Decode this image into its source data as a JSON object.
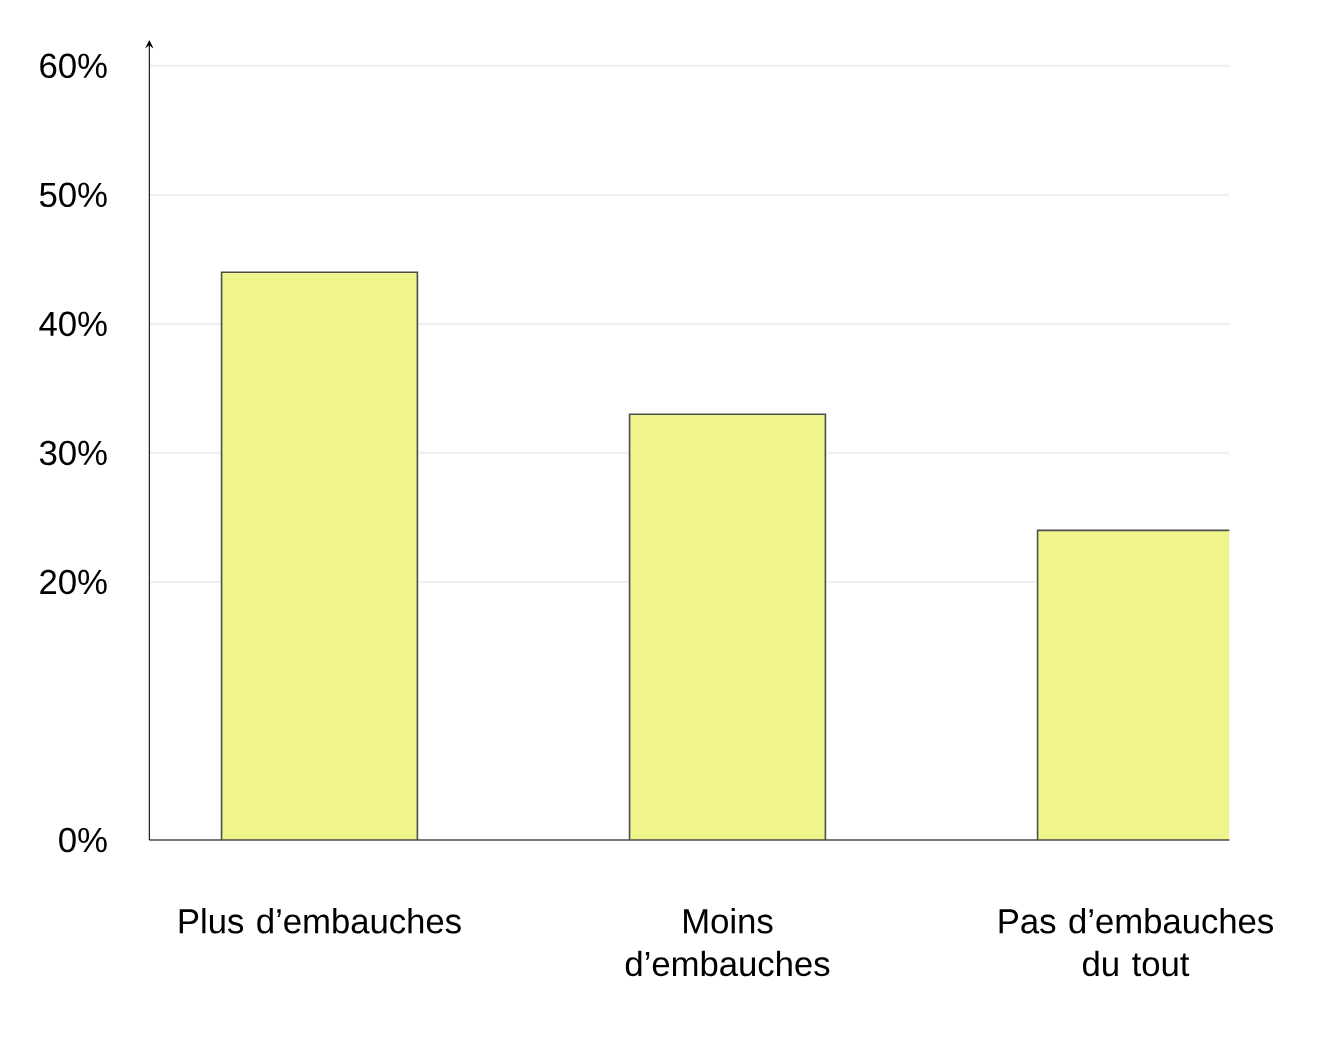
{
  "chart_data": {
    "type": "bar",
    "categories": [
      "Plus d’embauches",
      "Moins d’embauches",
      "Pas d’embauches du tout"
    ],
    "values": [
      44,
      33,
      24
    ],
    "color": "#f0f48c",
    "ylim": [
      0,
      62
    ],
    "yticks": [
      {
        "value": 0,
        "label": "0%"
      },
      {
        "value": 20,
        "label": "20%"
      },
      {
        "value": 30,
        "label": "30%"
      },
      {
        "value": 40,
        "label": "40%"
      },
      {
        "value": 50,
        "label": "50%"
      },
      {
        "value": 60,
        "label": "60%"
      }
    ],
    "grid": "y"
  }
}
